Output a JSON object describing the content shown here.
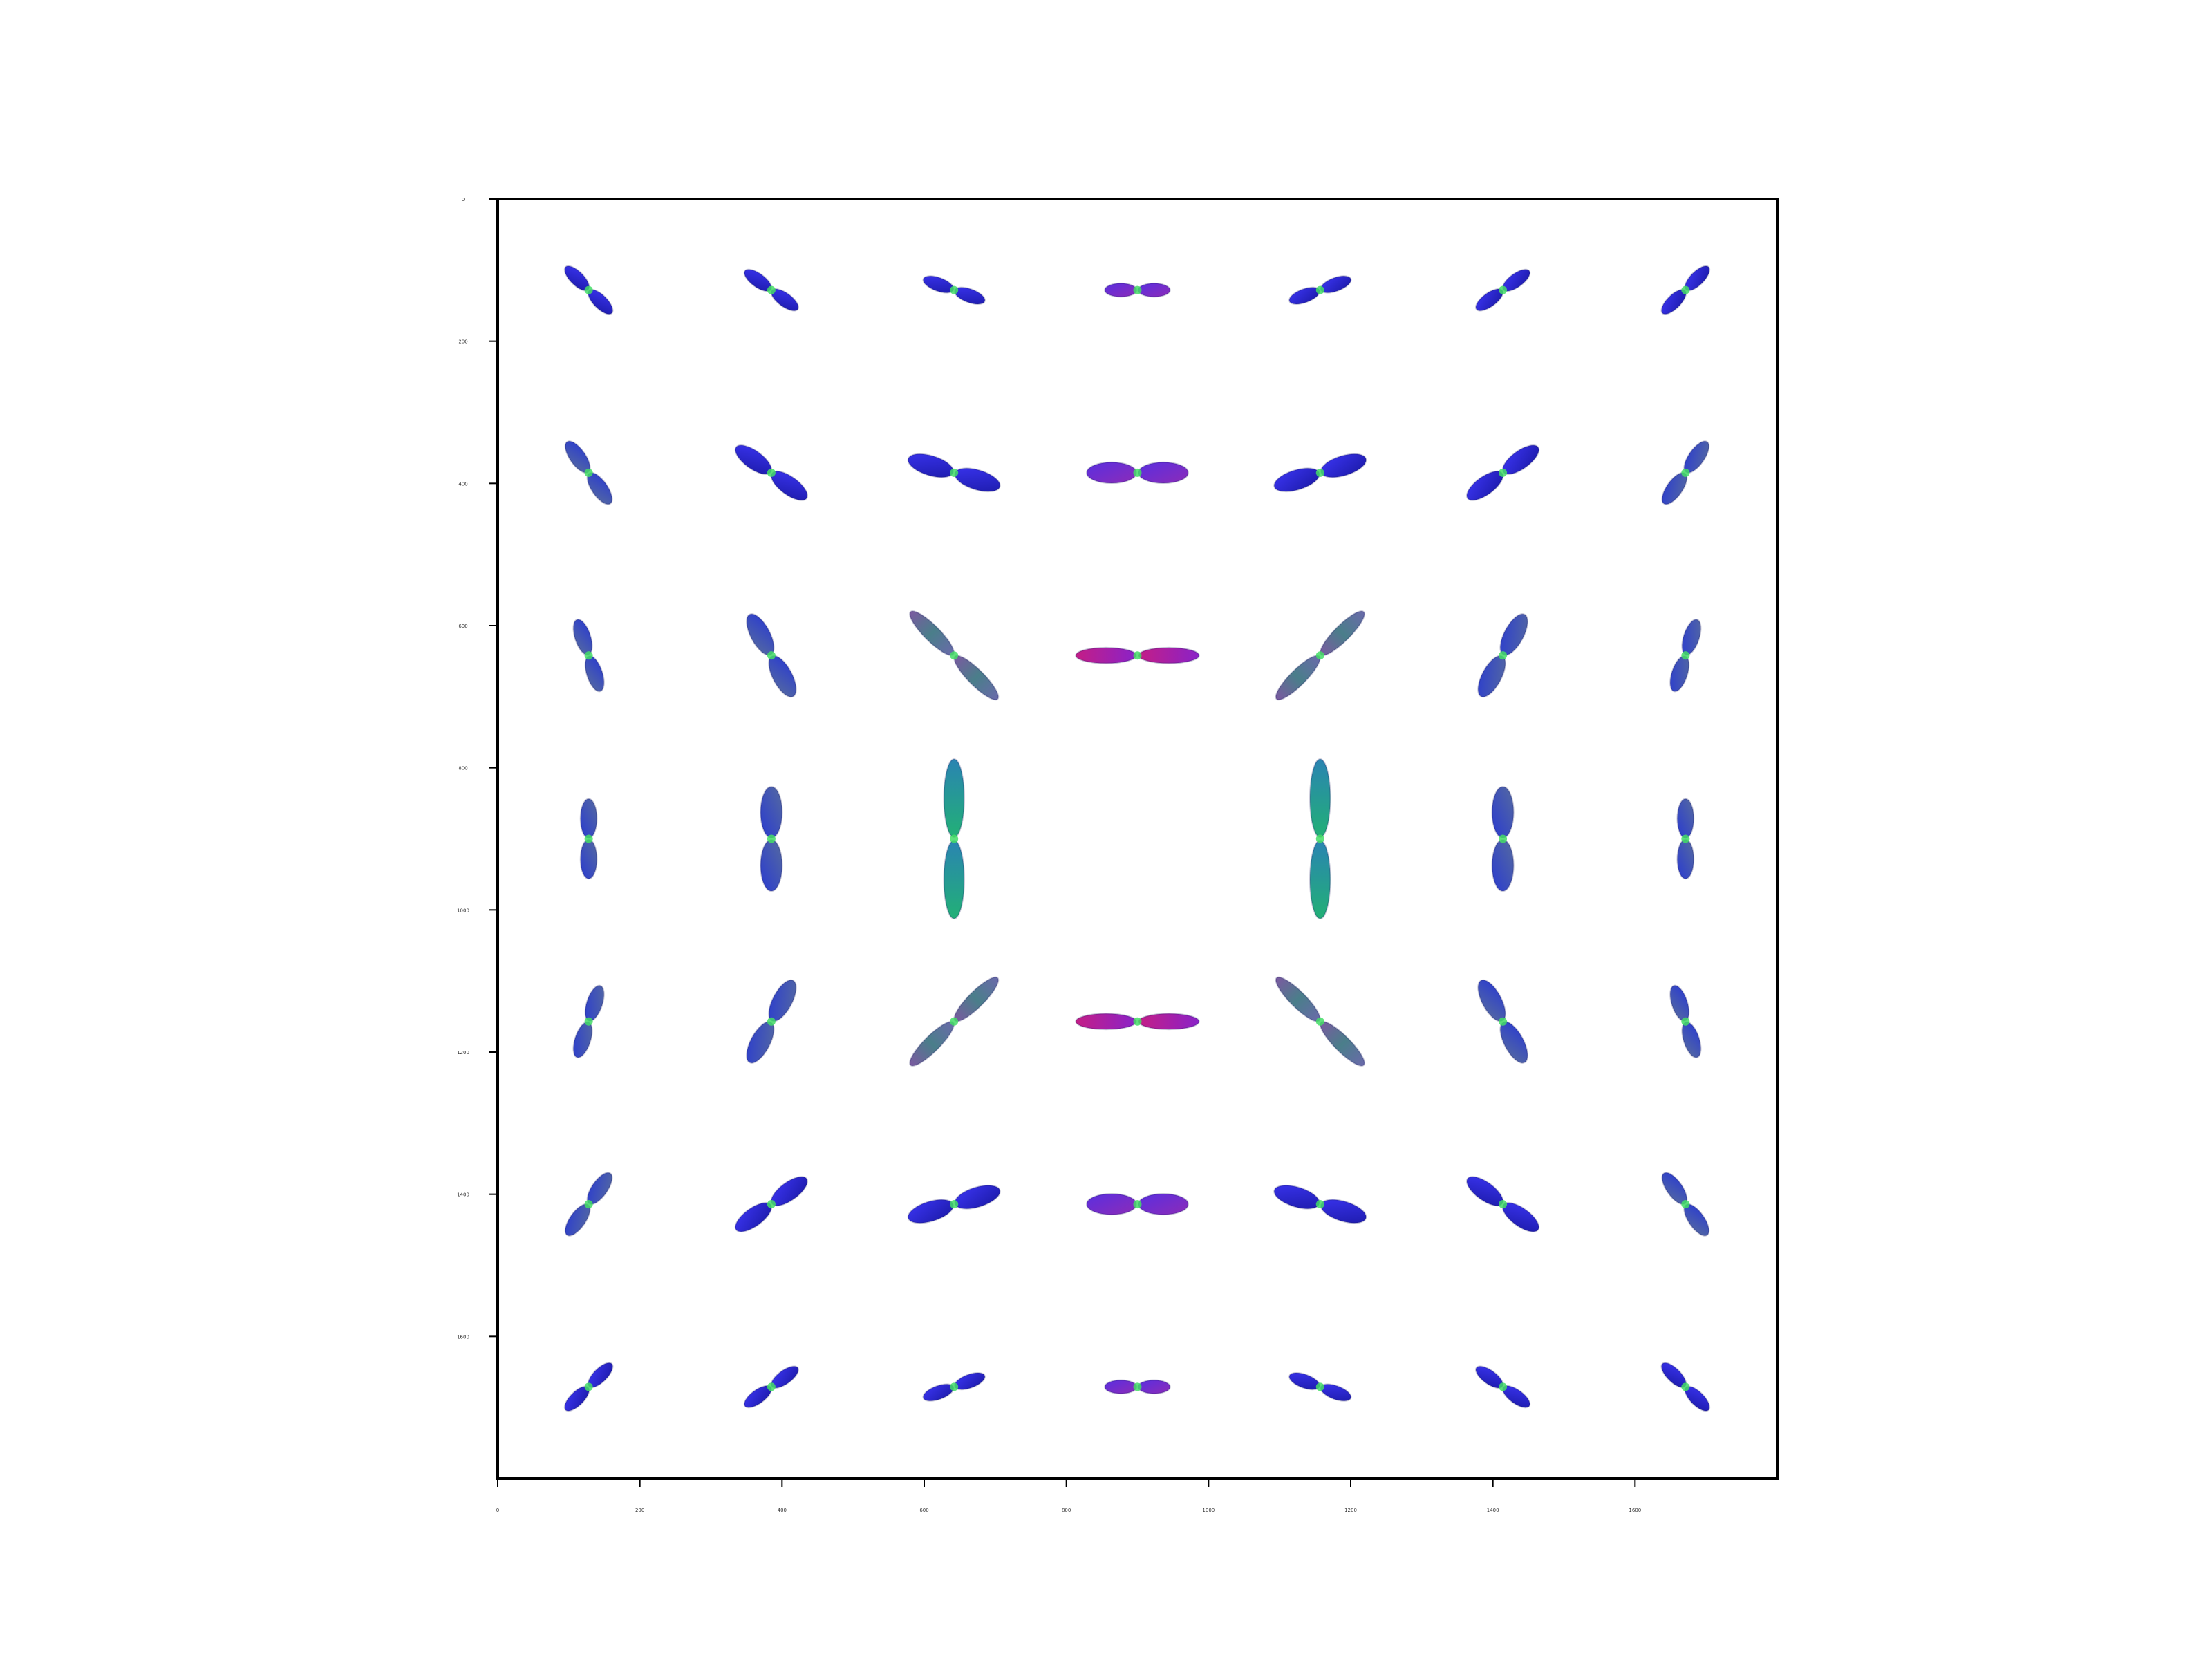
{
  "chart_data": {
    "type": "scatter",
    "title": "",
    "xlabel": "",
    "ylabel": "",
    "xlim": [
      0,
      1800
    ],
    "ylim": [
      1800,
      0
    ],
    "grid": false,
    "legend": "none",
    "x_ticks": [
      0,
      200,
      400,
      600,
      800,
      1000,
      1200,
      1400,
      1600
    ],
    "y_ticks": [
      0,
      200,
      400,
      600,
      800,
      1000,
      1200,
      1400,
      1600
    ],
    "glyph_rows_y": [
      128,
      385,
      642,
      900,
      1157,
      1414,
      1671
    ],
    "glyph_cols_x": [
      128,
      385,
      642,
      900,
      1157,
      1414,
      1671
    ],
    "glyphs": [
      {
        "x": 128,
        "y": 128,
        "angle": -45,
        "length": 45
      },
      {
        "x": 385,
        "y": 128,
        "angle": -36,
        "length": 45
      },
      {
        "x": 642,
        "y": 128,
        "angle": -20,
        "length": 45
      },
      {
        "x": 900,
        "y": 128,
        "angle": 0,
        "length": 45
      },
      {
        "x": 1157,
        "y": 128,
        "angle": 20,
        "length": 45
      },
      {
        "x": 1414,
        "y": 128,
        "angle": 36,
        "length": 45
      },
      {
        "x": 1671,
        "y": 128,
        "angle": 45,
        "length": 45
      },
      {
        "x": 128,
        "y": 385,
        "angle": -55,
        "length": 52
      },
      {
        "x": 385,
        "y": 385,
        "angle": -36,
        "length": 60
      },
      {
        "x": 642,
        "y": 385,
        "angle": -17,
        "length": 66
      },
      {
        "x": 900,
        "y": 385,
        "angle": 0,
        "length": 70
      },
      {
        "x": 1157,
        "y": 385,
        "angle": 17,
        "length": 66
      },
      {
        "x": 1414,
        "y": 385,
        "angle": 36,
        "length": 60
      },
      {
        "x": 1671,
        "y": 385,
        "angle": 55,
        "length": 52
      },
      {
        "x": 128,
        "y": 642,
        "angle": -72,
        "length": 52
      },
      {
        "x": 385,
        "y": 642,
        "angle": -62,
        "length": 64
      },
      {
        "x": 642,
        "y": 642,
        "angle": -45,
        "length": 85
      },
      {
        "x": 900,
        "y": 642,
        "angle": 0,
        "length": 85
      },
      {
        "x": 1157,
        "y": 642,
        "angle": 45,
        "length": 85
      },
      {
        "x": 1414,
        "y": 642,
        "angle": 62,
        "length": 64
      },
      {
        "x": 1671,
        "y": 642,
        "angle": 72,
        "length": 52
      },
      {
        "x": 128,
        "y": 900,
        "angle": 90,
        "length": 55
      },
      {
        "x": 385,
        "y": 900,
        "angle": 90,
        "length": 72
      },
      {
        "x": 642,
        "y": 900,
        "angle": 90,
        "length": 110
      },
      {
        "x": 1157,
        "y": 900,
        "angle": 90,
        "length": 110
      },
      {
        "x": 1414,
        "y": 900,
        "angle": 90,
        "length": 72
      },
      {
        "x": 1671,
        "y": 900,
        "angle": 90,
        "length": 55
      },
      {
        "x": 128,
        "y": 1157,
        "angle": 72,
        "length": 52
      },
      {
        "x": 385,
        "y": 1157,
        "angle": 62,
        "length": 64
      },
      {
        "x": 642,
        "y": 1157,
        "angle": 45,
        "length": 85
      },
      {
        "x": 900,
        "y": 1157,
        "angle": 0,
        "length": 85
      },
      {
        "x": 1157,
        "y": 1157,
        "angle": -45,
        "length": 85
      },
      {
        "x": 1414,
        "y": 1157,
        "angle": -62,
        "length": 64
      },
      {
        "x": 1671,
        "y": 1157,
        "angle": -72,
        "length": 52
      },
      {
        "x": 128,
        "y": 1414,
        "angle": 55,
        "length": 52
      },
      {
        "x": 385,
        "y": 1414,
        "angle": 36,
        "length": 60
      },
      {
        "x": 642,
        "y": 1414,
        "angle": 17,
        "length": 66
      },
      {
        "x": 900,
        "y": 1414,
        "angle": 0,
        "length": 70
      },
      {
        "x": 1157,
        "y": 1414,
        "angle": -17,
        "length": 66
      },
      {
        "x": 1414,
        "y": 1414,
        "angle": -36,
        "length": 60
      },
      {
        "x": 1671,
        "y": 1414,
        "angle": -55,
        "length": 52
      },
      {
        "x": 128,
        "y": 1671,
        "angle": 45,
        "length": 45
      },
      {
        "x": 385,
        "y": 1671,
        "angle": 36,
        "length": 45
      },
      {
        "x": 642,
        "y": 1671,
        "angle": 20,
        "length": 45
      },
      {
        "x": 900,
        "y": 1671,
        "angle": 0,
        "length": 45
      },
      {
        "x": 1157,
        "y": 1671,
        "angle": -20,
        "length": 45
      },
      {
        "x": 1414,
        "y": 1671,
        "angle": -36,
        "length": 45
      },
      {
        "x": 1671,
        "y": 1671,
        "angle": -45,
        "length": 45
      }
    ]
  },
  "colors": {
    "background": "#ffffff",
    "axes": "#000000",
    "tick_label": "#333333",
    "lobe_blue": "#2a22d8",
    "lobe_purple": "#7a2cc8",
    "lobe_magenta": "#c0208e",
    "lobe_green": "#1fb07a",
    "lobe_teal": "#2a8ab0",
    "lobe_slate": "#5a6a9a",
    "center_marker": "#44dd66"
  },
  "icons": {
    "glyph_shape": "odf-lobe-pair"
  }
}
